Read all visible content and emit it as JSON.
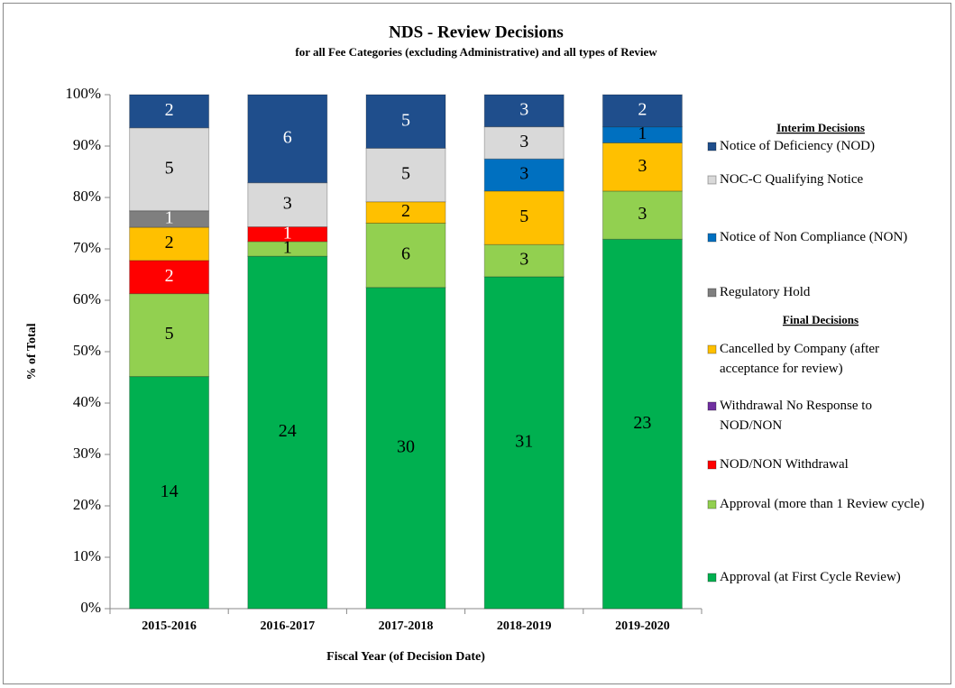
{
  "chart_data": {
    "type": "bar",
    "stacking": "percent",
    "title": "NDS - Review Decisions",
    "subtitle": "for all Fee Categories (excluding Administrative)  and all types of Review",
    "ylabel": "% of Total",
    "xlabel": "Fiscal Year (of  Decision Date)",
    "categories": [
      "2015-2016",
      "2016-2017",
      "2017-2018",
      "2018-2019",
      "2019-2020"
    ],
    "ylim": [
      0,
      100
    ],
    "yticks": [
      {
        "value": 0,
        "label": "0%"
      },
      {
        "value": 10,
        "label": "10%"
      },
      {
        "value": 20,
        "label": "20%"
      },
      {
        "value": 30,
        "label": "30%"
      },
      {
        "value": 40,
        "label": "40%"
      },
      {
        "value": 50,
        "label": "50%"
      },
      {
        "value": 60,
        "label": "60%"
      },
      {
        "value": 70,
        "label": "70%"
      },
      {
        "value": 80,
        "label": "80%"
      },
      {
        "value": 90,
        "label": "90%"
      },
      {
        "value": 100,
        "label": "100%"
      }
    ],
    "legend_headers": [
      "Interim Decisions",
      "Final Decisions"
    ],
    "series": [
      {
        "name": "Approval (at First Cycle Review)",
        "color": "#00b050",
        "label_color": "#000000",
        "values": [
          14,
          24,
          30,
          31,
          23
        ]
      },
      {
        "name": "Approval  (more than 1 Review cycle)",
        "color": "#92d050",
        "label_color": "#000000",
        "values": [
          5,
          1,
          6,
          3,
          3
        ]
      },
      {
        "name": "NOD/NON Withdrawal",
        "color": "#ff0000",
        "label_color": "#ffffff",
        "values": [
          2,
          1,
          0,
          0,
          0
        ]
      },
      {
        "name": "Withdrawal No Response to NOD/NON",
        "color": "#7030a0",
        "label_color": "#ffffff",
        "values": [
          0,
          0,
          0,
          0,
          0
        ]
      },
      {
        "name": "Cancelled by Company (after acceptance for review)",
        "color": "#ffc000",
        "label_color": "#000000",
        "values": [
          2,
          0,
          2,
          5,
          3
        ]
      },
      {
        "name": "Regulatory Hold",
        "color": "#7f7f7f",
        "label_color": "#ffffff",
        "values": [
          1,
          0,
          0,
          0,
          0
        ]
      },
      {
        "name": "Notice of Non Compliance (NON)",
        "color": "#0070c0",
        "label_color": "#000000",
        "values": [
          0,
          0,
          0,
          3,
          1
        ]
      },
      {
        "name": "NOC-C Qualifying Notice",
        "color": "#d9d9d9",
        "label_color": "#000000",
        "values": [
          5,
          3,
          5,
          3,
          0
        ]
      },
      {
        "name": "Notice of Deficiency (NOD)",
        "color": "#1f4e8c",
        "label_color": "#ffffff",
        "values": [
          2,
          6,
          5,
          3,
          2
        ]
      }
    ]
  }
}
